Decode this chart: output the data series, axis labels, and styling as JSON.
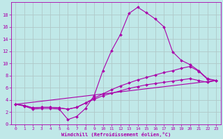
{
  "bg_color": "#c0e8e8",
  "line_color": "#aa00aa",
  "grid_color": "#b0c8c8",
  "xlabel": "Windchill (Refroidissement éolien,°C)",
  "xlabel_color": "#aa00aa",
  "tick_color": "#aa00aa",
  "spine_color": "#aa00aa",
  "ylim": [
    0,
    20
  ],
  "xlim": [
    -0.5,
    23.5
  ],
  "yticks": [
    0,
    2,
    4,
    6,
    8,
    10,
    12,
    14,
    16,
    18
  ],
  "xticks": [
    0,
    1,
    2,
    3,
    4,
    5,
    6,
    7,
    8,
    9,
    10,
    11,
    12,
    13,
    14,
    15,
    16,
    17,
    18,
    19,
    20,
    21,
    22,
    23
  ],
  "line1_x": [
    0,
    1,
    2,
    3,
    4,
    5,
    6,
    7,
    8,
    9,
    10,
    11,
    12,
    13,
    14,
    15,
    16,
    17,
    18,
    19,
    20,
    21,
    22,
    23
  ],
  "line1_y": [
    3.3,
    3.0,
    2.5,
    2.6,
    2.6,
    2.5,
    0.8,
    1.3,
    2.6,
    4.7,
    8.8,
    12.1,
    14.7,
    18.2,
    19.2,
    18.3,
    17.3,
    16.0,
    11.9,
    10.5,
    9.8,
    8.8,
    7.5,
    7.2
  ],
  "line2_x": [
    0,
    1,
    2,
    3,
    4,
    5,
    6,
    7,
    8,
    9,
    10,
    11,
    12,
    13,
    14,
    15,
    16,
    17,
    18,
    19,
    20,
    21,
    22,
    23
  ],
  "line2_y": [
    3.3,
    3.1,
    2.7,
    2.8,
    2.8,
    2.7,
    2.5,
    2.8,
    3.5,
    4.3,
    5.0,
    5.7,
    6.3,
    6.8,
    7.3,
    7.7,
    8.1,
    8.5,
    8.8,
    9.2,
    9.5,
    8.7,
    7.4,
    7.2
  ],
  "line3_x": [
    0,
    1,
    2,
    3,
    4,
    5,
    6,
    7,
    8,
    9,
    10,
    11,
    12,
    13,
    14,
    15,
    16,
    17,
    18,
    19,
    20,
    21,
    22,
    23
  ],
  "line3_y": [
    3.3,
    3.1,
    2.7,
    2.8,
    2.8,
    2.7,
    2.5,
    2.8,
    3.5,
    4.1,
    4.7,
    5.1,
    5.5,
    5.9,
    6.2,
    6.5,
    6.7,
    6.9,
    7.1,
    7.3,
    7.5,
    7.2,
    6.9,
    7.2
  ],
  "line4_x": [
    0,
    23
  ],
  "line4_y": [
    3.3,
    7.2
  ]
}
